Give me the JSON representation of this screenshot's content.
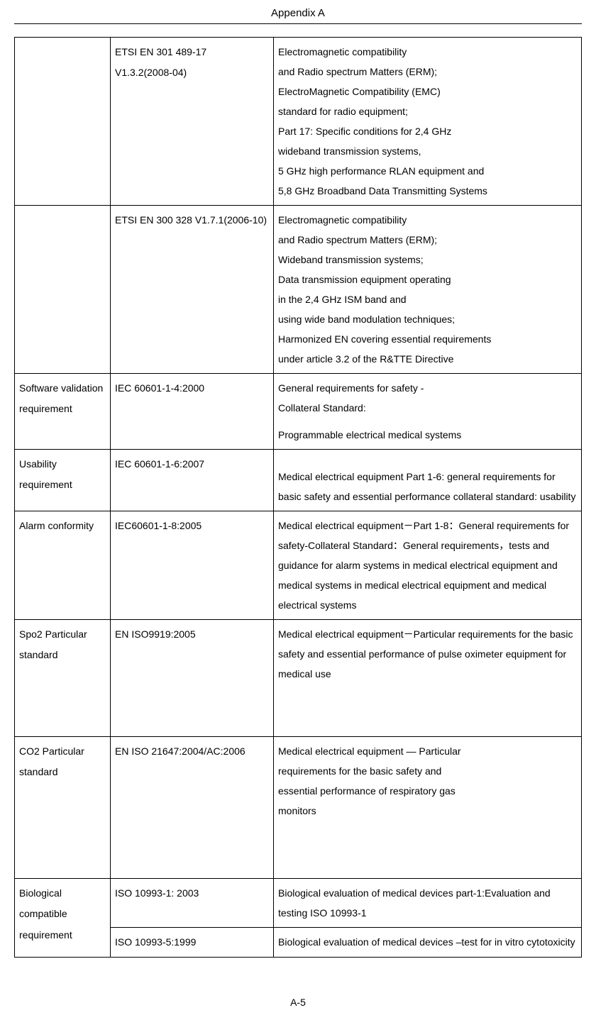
{
  "header": {
    "title": "Appendix A"
  },
  "footer": {
    "page": "A-5"
  },
  "rows": [
    {
      "col1": "",
      "col2_lines": [
        " ETSI EN 301 489-17",
        "V1.3.2(2008-04)"
      ],
      "col3_lines": [
        "Electromagnetic compatibility",
        "and Radio spectrum Matters (ERM);",
        "ElectroMagnetic Compatibility (EMC)",
        "standard for radio equipment;",
        "Part 17: Specific conditions for 2,4 GHz",
        "wideband transmission systems,",
        "5 GHz high performance RLAN equipment and",
        "5,8 GHz Broadband Data Transmitting Systems"
      ],
      "line_style": "loose"
    },
    {
      "col1": "",
      "col2_lines": [
        "ETSI EN 300 328 V1.7.1(2006-10)"
      ],
      "col3_lines": [
        "Electromagnetic compatibility",
        "and Radio spectrum Matters (ERM);",
        "Wideband transmission systems;",
        "Data transmission equipment operating",
        "in the 2,4 GHz ISM band and",
        "using wide band modulation techniques;",
        "Harmonized EN covering essential requirements",
        "under article 3.2 of the R&TTE Directive"
      ],
      "line_style": "loose"
    },
    {
      "col1": "Software validation requirement",
      "col2_lines": [
        "IEC 60601-1-4:2000"
      ],
      "col3_lines": [
        "General requirements for safety -",
        "Collateral Standard:",
        "Programmable electrical medical systems"
      ],
      "line_style": "tight",
      "col3_gap_after": 1
    },
    {
      "col1": "Usability requirement",
      "col2_lines": [
        "IEC 60601-1-6:2007"
      ],
      "col3_text": "Medical electrical equipment Part 1-6: general requirements for basic safety and essential performance collateral standard: usability",
      "line_style": "tight",
      "col3_top_pad": true
    },
    {
      "col1": "Alarm conformity",
      "col2_lines": [
        "IEC60601-1-8:2005"
      ],
      "col3_text": "Medical electrical equipment－Part 1-8：General requirements for safety-Collateral Standard：General requirements，tests and guidance for alarm systems in medical electrical equipment and medical systems in medical electrical equipment and medical electrical systems",
      "line_style": "tight"
    },
    {
      "col1": "Spo2 Particular standard",
      "col2_lines": [
        "EN ISO9919:2005"
      ],
      "col3_text": "Medical electrical equipment－Particular requirements for the basic safety and essential performance of pulse oximeter equipment for medical use",
      "line_style": "tight",
      "extra_height": 165
    },
    {
      "col1": "CO2 Particular standard",
      "col2_lines": [
        "EN ISO 21647:2004/AC:2006"
      ],
      "col3_lines": [
        "Medical electrical equipment — Particular",
        "requirements for the basic safety and",
        "essential performance of respiratory gas",
        "monitors"
      ],
      "line_style": "loose",
      "extra_height": 200
    },
    {
      "col1": "Biological compatible requirement",
      "col1_rowspan": 2,
      "col2_lines": [
        "ISO 10993-1: 2003"
      ],
      "col3_text": "Biological evaluation of medical devices part-1:Evaluation and testing ISO 10993-1",
      "line_style": "loose"
    },
    {
      "col2_lines": [
        "ISO 10993-5:1999"
      ],
      "col3_text": "Biological evaluation of medical devices –test for in vitro cytotoxicity",
      "line_style": "loose"
    }
  ]
}
